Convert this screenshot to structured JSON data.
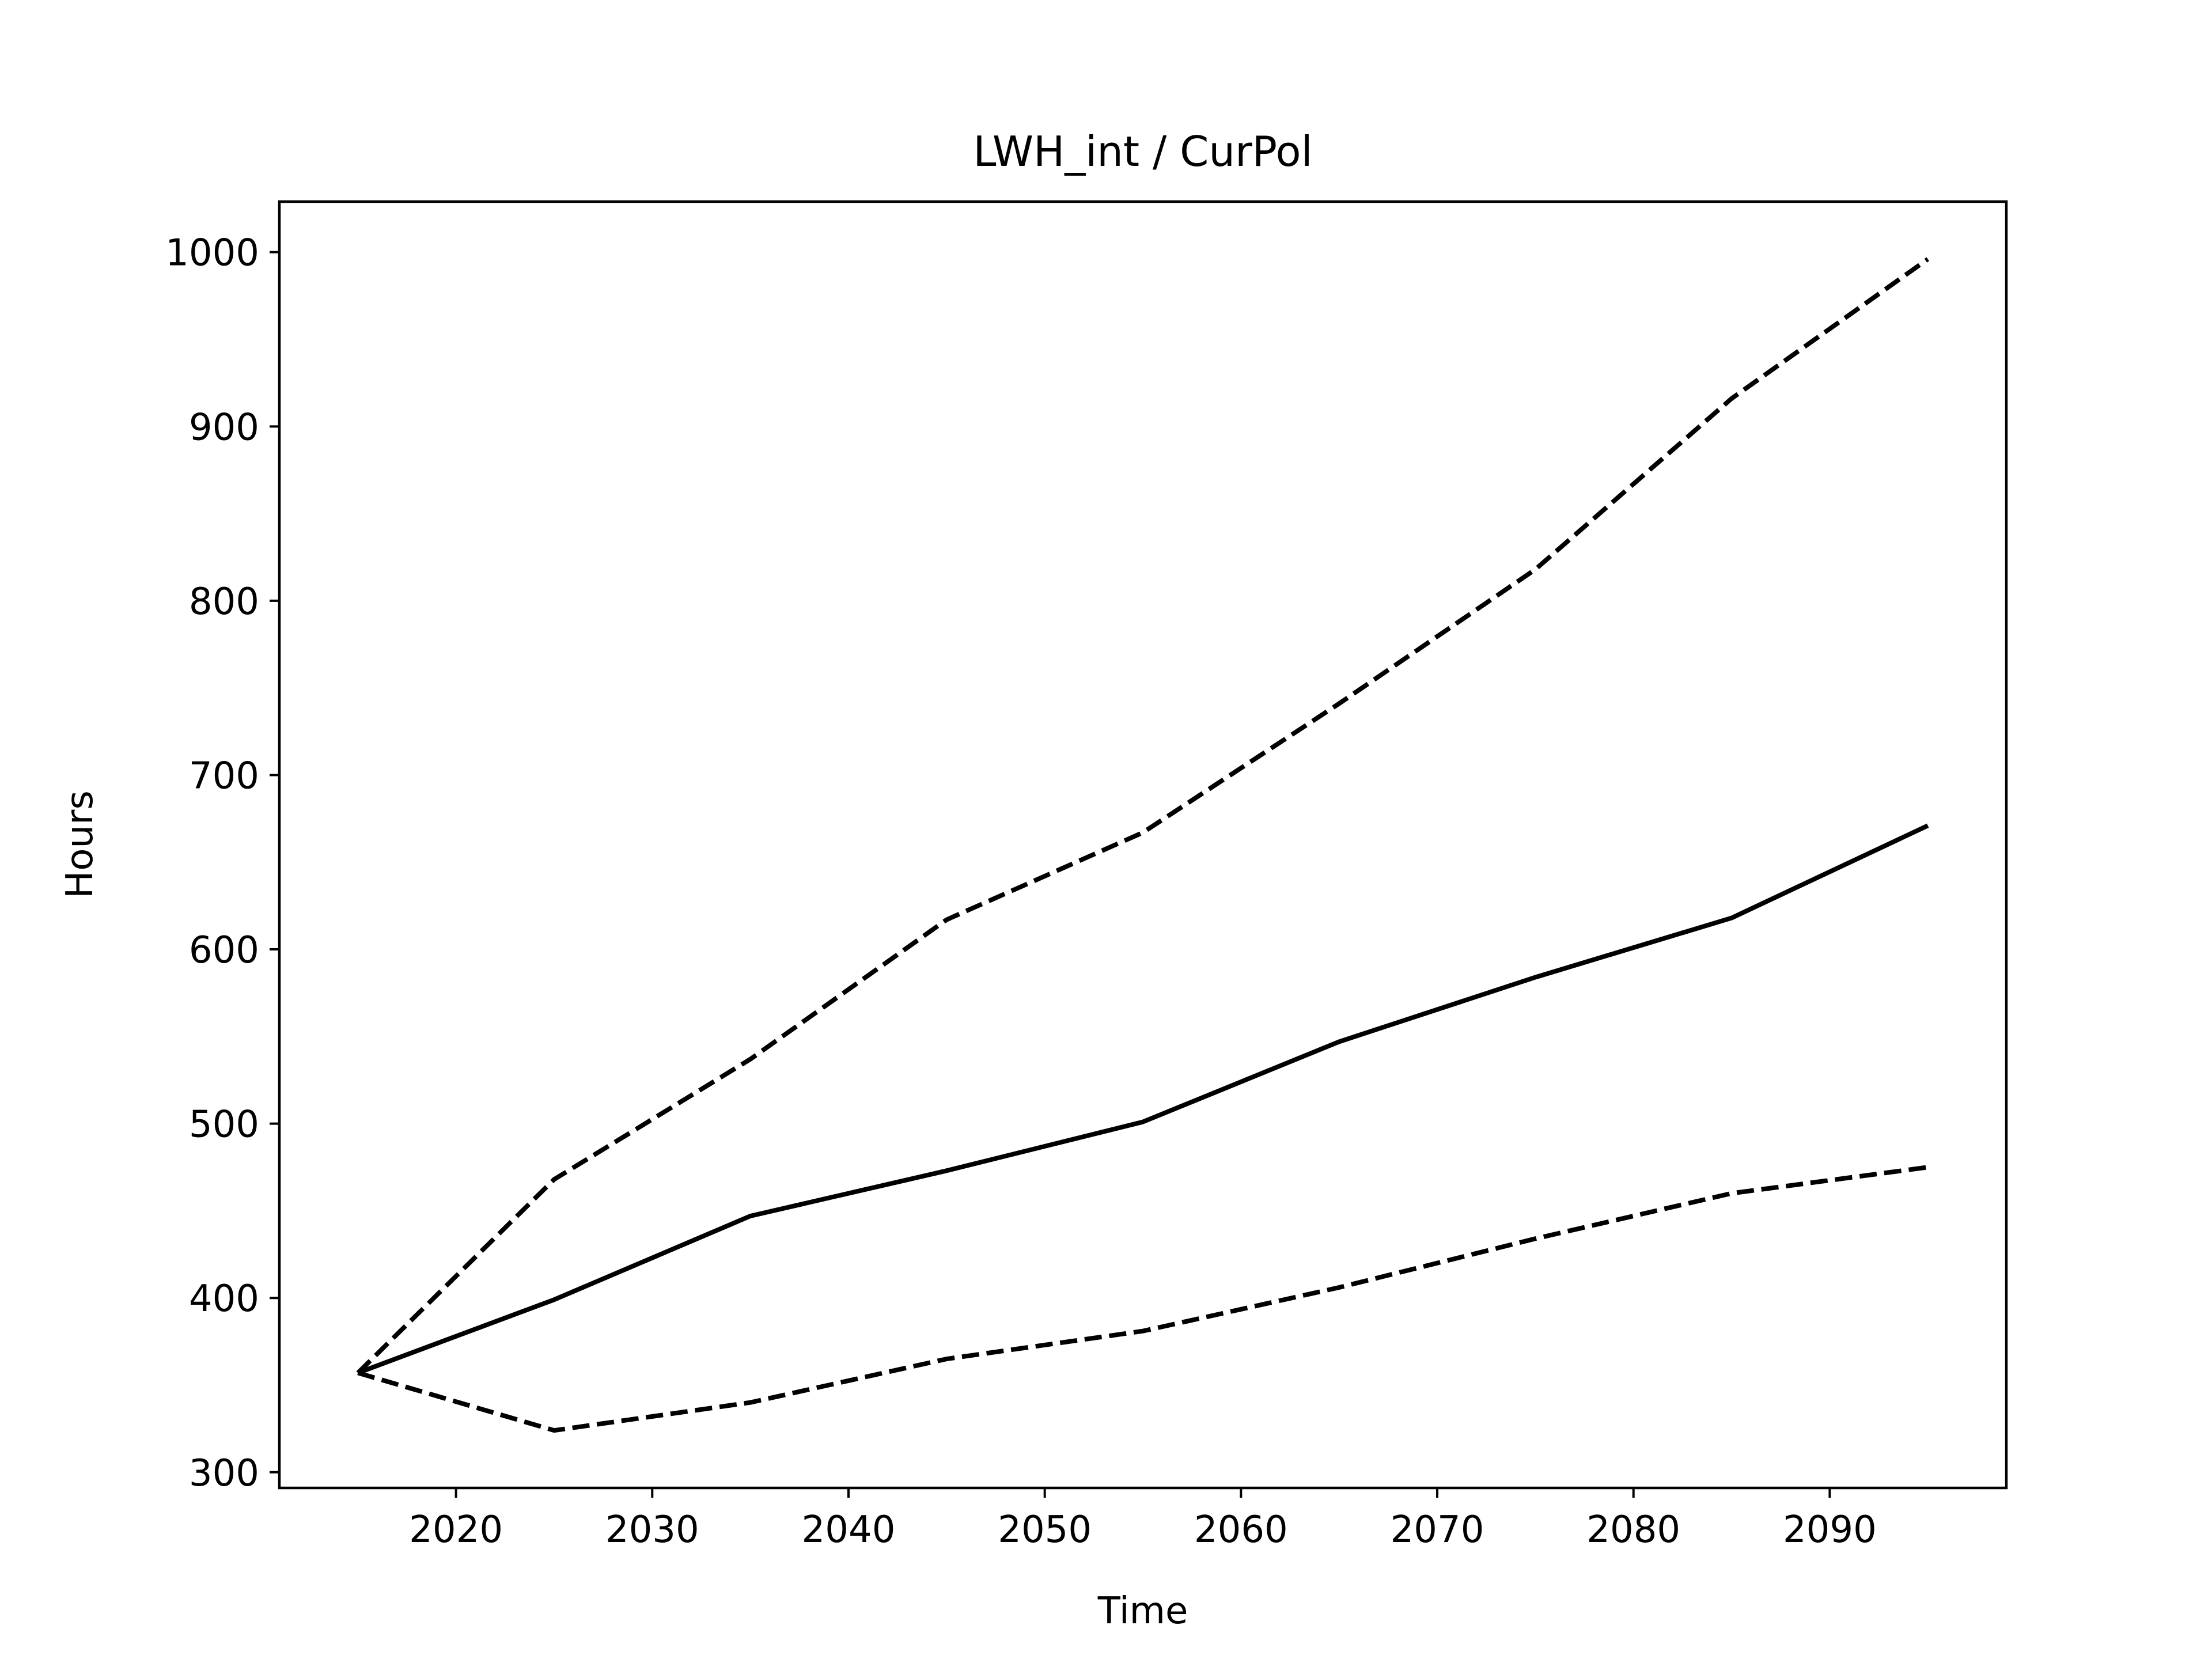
{
  "chart_data": {
    "type": "line",
    "title": "LWH_int / CurPol",
    "xlabel": "Time",
    "ylabel": "Hours",
    "xlim": [
      2011,
      2099
    ],
    "ylim": [
      291,
      1029
    ],
    "xticks": [
      2020,
      2030,
      2040,
      2050,
      2060,
      2070,
      2080,
      2090
    ],
    "yticks": [
      300,
      400,
      500,
      600,
      700,
      800,
      900,
      1000
    ],
    "grid": false,
    "legend": "none",
    "x": [
      2015,
      2025,
      2035,
      2045,
      2055,
      2065,
      2075,
      2085,
      2095
    ],
    "series": [
      {
        "values": [
          357,
          468,
          537,
          617,
          667,
          741,
          818,
          916,
          996
        ],
        "style": "dashed",
        "color": "#000000"
      },
      {
        "values": [
          357,
          399,
          447,
          473,
          501,
          547,
          584,
          618,
          671
        ],
        "style": "solid",
        "color": "#000000"
      },
      {
        "values": [
          357,
          324,
          340,
          365,
          381,
          406,
          434,
          460,
          475
        ],
        "style": "dashed",
        "color": "#000000"
      }
    ]
  }
}
